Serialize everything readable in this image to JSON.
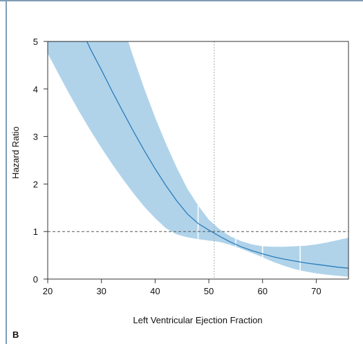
{
  "panel_label": "B",
  "chart_data": {
    "type": "line",
    "title": "",
    "xlabel": "Left Ventricular Ejection Fraction",
    "ylabel": "Hazard Ratio",
    "xlim": [
      20,
      76
    ],
    "ylim": [
      0,
      5
    ],
    "x_ticks": [
      20,
      30,
      40,
      50,
      60,
      70
    ],
    "y_ticks": [
      0,
      1,
      2,
      3,
      4,
      5
    ],
    "grid": false,
    "legend": "none",
    "reference_lines": [
      {
        "orientation": "horizontal",
        "value": 1,
        "style": "dashed",
        "color": "#555555"
      },
      {
        "orientation": "vertical",
        "value": 51,
        "style": "dotted",
        "color": "#aaaaaa"
      }
    ],
    "knots": [
      48,
      55,
      60,
      67
    ],
    "series": [
      {
        "kind": "estimate",
        "color": "#2b7bba",
        "x": [
          20,
          22,
          24,
          26,
          27.3,
          28,
          30,
          32,
          34,
          36,
          38,
          40,
          42,
          44,
          46,
          48,
          50,
          52,
          54,
          56,
          58,
          60,
          62,
          64,
          66,
          68,
          70,
          72,
          74,
          76
        ],
        "y": [
          5.0,
          5.0,
          5.0,
          5.0,
          5.0,
          4.83,
          4.4,
          3.95,
          3.52,
          3.1,
          2.7,
          2.32,
          1.97,
          1.65,
          1.37,
          1.17,
          1.03,
          0.9,
          0.78,
          0.68,
          0.6,
          0.53,
          0.47,
          0.42,
          0.38,
          0.34,
          0.31,
          0.28,
          0.25,
          0.23
        ]
      },
      {
        "kind": "ci_band",
        "color": "#b0d3ea",
        "x": [
          20,
          22,
          24,
          26,
          28,
          30,
          32,
          34,
          35,
          36,
          38,
          40,
          42,
          44,
          46,
          48,
          50,
          52,
          54,
          56,
          58,
          60,
          62,
          64,
          66,
          68,
          70,
          72,
          74,
          76
        ],
        "upper": [
          5.0,
          5.0,
          5.0,
          5.0,
          5.0,
          5.0,
          5.0,
          5.0,
          5.0,
          4.65,
          4.0,
          3.4,
          2.85,
          2.35,
          1.9,
          1.55,
          1.25,
          1.05,
          0.9,
          0.8,
          0.73,
          0.69,
          0.68,
          0.68,
          0.69,
          0.7,
          0.73,
          0.77,
          0.82,
          0.87
        ],
        "lower": [
          4.75,
          4.32,
          3.9,
          3.5,
          3.12,
          2.76,
          2.42,
          2.1,
          1.95,
          1.8,
          1.52,
          1.28,
          1.07,
          0.94,
          0.88,
          0.84,
          0.81,
          0.78,
          0.72,
          0.64,
          0.55,
          0.46,
          0.36,
          0.28,
          0.21,
          0.16,
          0.12,
          0.09,
          0.07,
          0.05
        ]
      }
    ]
  }
}
